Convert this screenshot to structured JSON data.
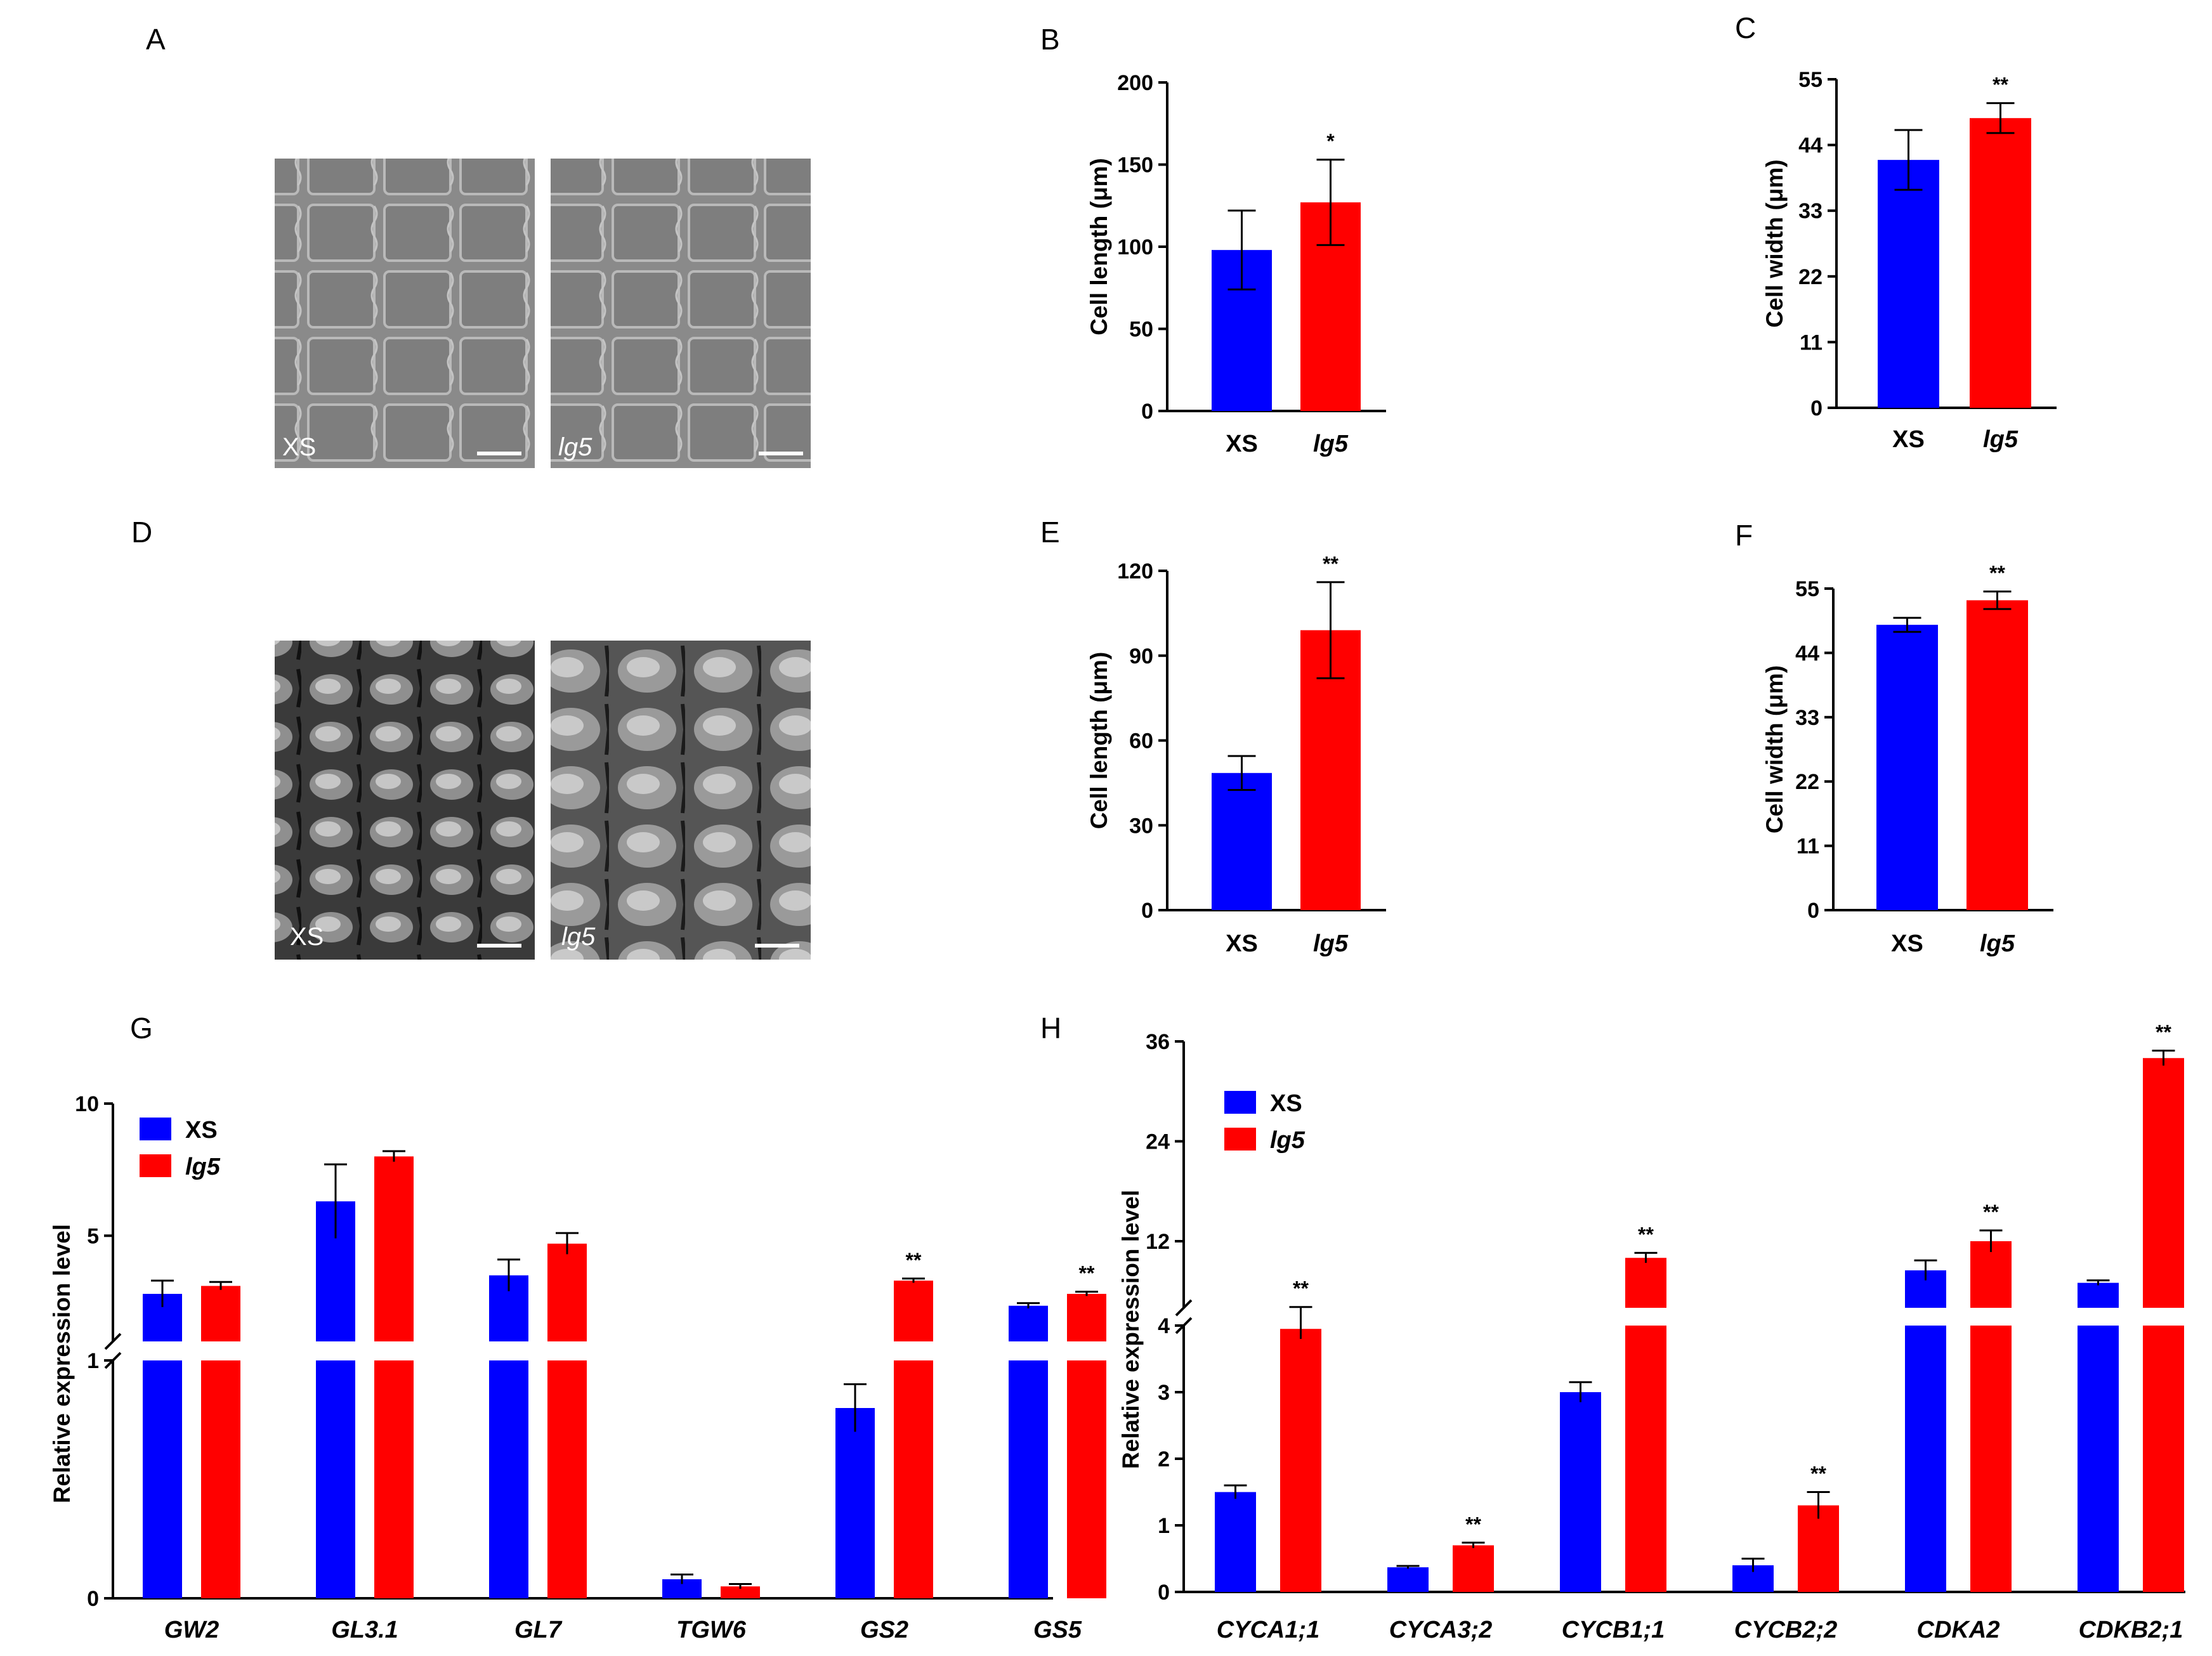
{
  "colors": {
    "xs": "#0000ff",
    "lg5": "#ff0000"
  },
  "images": {
    "A": {
      "letter": "A",
      "left_label": "XS",
      "right_label": "lg5",
      "style": "light"
    },
    "D": {
      "letter": "D",
      "left_label": "XS",
      "right_label": "lg5",
      "style": "dark"
    }
  },
  "chart_data": [
    {
      "id": "B",
      "letter": "B",
      "type": "bar",
      "categories": [
        "XS",
        "lg5"
      ],
      "italic": [
        false,
        true
      ],
      "values": [
        98,
        127
      ],
      "errors": [
        24,
        26
      ],
      "ylabel": "Cell length (μm)",
      "ylim": [
        0,
        200
      ],
      "yticks": [
        "0",
        "50",
        "100",
        "150",
        "200"
      ],
      "significance": [
        "",
        "*"
      ]
    },
    {
      "id": "C",
      "letter": "C",
      "type": "bar",
      "categories": [
        "XS",
        "lg5"
      ],
      "italic": [
        false,
        true
      ],
      "values": [
        41.5,
        48.5
      ],
      "errors": [
        5,
        2.5
      ],
      "ylabel": "Cell width (μm)",
      "ylim": [
        0,
        55
      ],
      "yticks": [
        "0",
        "11",
        "22",
        "33",
        "44",
        "55"
      ],
      "significance": [
        "",
        "**"
      ]
    },
    {
      "id": "E",
      "letter": "E",
      "type": "bar",
      "categories": [
        "XS",
        "lg5"
      ],
      "italic": [
        false,
        true
      ],
      "values": [
        48.5,
        99
      ],
      "errors": [
        6,
        17
      ],
      "ylabel": "Cell length (μm)",
      "ylim": [
        0,
        120
      ],
      "yticks": [
        "0",
        "30",
        "60",
        "90",
        "120"
      ],
      "significance": [
        "",
        "**"
      ]
    },
    {
      "id": "F",
      "letter": "F",
      "type": "bar",
      "categories": [
        "XS",
        "lg5"
      ],
      "italic": [
        false,
        true
      ],
      "values": [
        48.8,
        53
      ],
      "errors": [
        1.2,
        1.5
      ],
      "ylabel": "Cell width (μm)",
      "ylim": [
        0,
        55
      ],
      "yticks": [
        "0",
        "11",
        "22",
        "33",
        "44",
        "55"
      ],
      "significance": [
        "",
        "**"
      ]
    },
    {
      "id": "G",
      "letter": "G",
      "type": "bar",
      "categories": [
        "GW2",
        "GL3.1",
        "GL7",
        "TGW6",
        "GS2",
        "GS5"
      ],
      "ylabel": "Relative expression level",
      "broken_axis": {
        "lower": [
          0,
          1
        ],
        "upper": [
          1,
          10
        ]
      },
      "yticks_lower": [
        "0"
      ],
      "yticks_upper": [
        "1",
        "5",
        "10"
      ],
      "legend": [
        "XS",
        "lg5"
      ],
      "series": [
        {
          "name": "XS",
          "values": [
            2.8,
            6.3,
            3.5,
            0.08,
            0.8,
            2.35
          ],
          "errors": [
            0.5,
            1.4,
            0.6,
            0.02,
            0.1,
            0.1
          ]
        },
        {
          "name": "lg5",
          "values": [
            3.1,
            8.0,
            4.7,
            0.05,
            3.3,
            2.8
          ],
          "errors": [
            0.15,
            0.2,
            0.4,
            0.01,
            0.08,
            0.08
          ]
        }
      ],
      "significance": [
        "",
        "",
        "",
        "",
        "**",
        "**"
      ]
    },
    {
      "id": "H",
      "letter": "H",
      "type": "bar",
      "categories": [
        "CYCA1;1",
        "CYCA3;2",
        "CYCB1;1",
        "CYCB2;2",
        "CDKA2",
        "CDKB2;1"
      ],
      "ylabel": "Relative expression level",
      "broken_axis": {
        "lower": [
          0,
          4
        ],
        "upper": [
          4,
          36
        ]
      },
      "yticks_lower": [
        "0",
        "1",
        "2",
        "3",
        "4"
      ],
      "yticks_upper": [
        "12",
        "24",
        "36"
      ],
      "legend": [
        "XS",
        "lg5"
      ],
      "series": [
        {
          "name": "XS",
          "values": [
            1.5,
            0.37,
            3.0,
            0.4,
            8.5,
            7.0
          ],
          "errors": [
            0.1,
            0.02,
            0.15,
            0.1,
            1.2,
            0.3
          ]
        },
        {
          "name": "lg5",
          "values": [
            3.95,
            0.7,
            10.0,
            1.3,
            12.0,
            34.0
          ],
          "errors": [
            0.15,
            0.04,
            0.6,
            0.2,
            1.3,
            0.9
          ]
        }
      ],
      "significance": [
        "**",
        "**",
        "**",
        "**",
        "**",
        "**"
      ]
    }
  ]
}
